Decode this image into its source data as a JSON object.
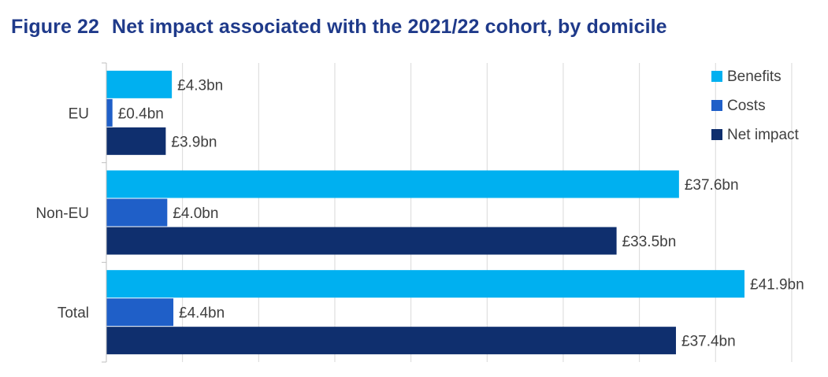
{
  "figure": {
    "number": "Figure 22",
    "title": "Net impact associated with the 2021/22 cohort, by domicile"
  },
  "chart_data": {
    "type": "bar",
    "orientation": "horizontal",
    "categories": [
      "EU",
      "Non-EU",
      "Total"
    ],
    "series": [
      {
        "name": "Benefits",
        "color": "#00b0f0",
        "values": [
          4.3,
          37.6,
          41.9
        ],
        "labels": [
          "£4.3bn",
          "£37.6bn",
          "£41.9bn"
        ]
      },
      {
        "name": "Costs",
        "color": "#1f5fc8",
        "values": [
          0.4,
          4.0,
          4.4
        ],
        "labels": [
          "£0.4bn",
          "£4.0bn",
          "£4.4bn"
        ]
      },
      {
        "name": "Net impact",
        "color": "#0f2f6e",
        "values": [
          3.9,
          33.5,
          37.4
        ],
        "labels": [
          "£3.9bn",
          "£33.5bn",
          "£37.4bn"
        ]
      }
    ],
    "xlim": [
      0,
      45
    ],
    "grid": true,
    "legend_position": "top-right"
  }
}
